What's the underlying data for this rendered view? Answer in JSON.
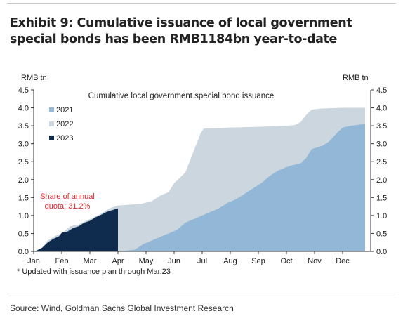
{
  "title": "Exhibit 9: Cumulative issuance of local government special bonds has been RMB1184bn year-to-date",
  "source": "Source: Wind, Goldman Sachs Global Investment Research",
  "chart_data": {
    "type": "area",
    "title": "Cumulative local government special bond issuance",
    "ylabel_left": "RMB tn",
    "ylabel_right": "RMB tn",
    "ylim": [
      0,
      4.5
    ],
    "yticks": [
      "0.0",
      "0.5",
      "1.0",
      "1.5",
      "2.0",
      "2.5",
      "3.0",
      "3.5",
      "4.0",
      "4.5"
    ],
    "xlim": [
      0,
      12
    ],
    "xticks": [
      {
        "label": "Jan",
        "x": 0
      },
      {
        "label": "Feb",
        "x": 1
      },
      {
        "label": "Mar",
        "x": 2
      },
      {
        "label": "Apr",
        "x": 3
      },
      {
        "label": "May",
        "x": 4
      },
      {
        "label": "Jun",
        "x": 5
      },
      {
        "label": "Jul",
        "x": 6
      },
      {
        "label": "Aug",
        "x": 7
      },
      {
        "label": "Sep",
        "x": 8
      },
      {
        "label": "Oct",
        "x": 9
      },
      {
        "label": "Nov",
        "x": 10
      },
      {
        "label": "Dec",
        "x": 11
      }
    ],
    "legend_position": "top-left",
    "annotation": "Share of annual quota: 31.2%",
    "footnote": "* Updated with issuance plan through Mar.23",
    "series": [
      {
        "name": "2022",
        "color": "#cbd6de",
        "points": [
          [
            0,
            0
          ],
          [
            0.3,
            0.1
          ],
          [
            0.5,
            0.3
          ],
          [
            0.8,
            0.45
          ],
          [
            1.0,
            0.5
          ],
          [
            1.3,
            0.7
          ],
          [
            1.6,
            0.75
          ],
          [
            2.0,
            0.9
          ],
          [
            2.4,
            1.05
          ],
          [
            2.7,
            1.2
          ],
          [
            3.0,
            1.28
          ],
          [
            3.4,
            1.3
          ],
          [
            3.8,
            1.32
          ],
          [
            4.2,
            1.4
          ],
          [
            4.5,
            1.55
          ],
          [
            4.8,
            1.65
          ],
          [
            5.0,
            1.9
          ],
          [
            5.2,
            2.05
          ],
          [
            5.4,
            2.2
          ],
          [
            5.6,
            2.6
          ],
          [
            5.8,
            3.0
          ],
          [
            5.95,
            3.3
          ],
          [
            6.05,
            3.42
          ],
          [
            6.5,
            3.43
          ],
          [
            7.0,
            3.45
          ],
          [
            8.0,
            3.47
          ],
          [
            9.0,
            3.5
          ],
          [
            9.3,
            3.52
          ],
          [
            9.5,
            3.6
          ],
          [
            9.7,
            3.8
          ],
          [
            9.9,
            3.95
          ],
          [
            10.2,
            3.98
          ],
          [
            11.0,
            4.0
          ],
          [
            11.8,
            4.0
          ]
        ]
      },
      {
        "name": "2021",
        "color": "#93b7d6",
        "points": [
          [
            0,
            0
          ],
          [
            3.0,
            0
          ],
          [
            3.3,
            0.02
          ],
          [
            3.6,
            0.05
          ],
          [
            3.9,
            0.2
          ],
          [
            4.2,
            0.3
          ],
          [
            4.5,
            0.4
          ],
          [
            4.8,
            0.5
          ],
          [
            5.1,
            0.6
          ],
          [
            5.4,
            0.8
          ],
          [
            5.7,
            0.9
          ],
          [
            6.0,
            1.0
          ],
          [
            6.3,
            1.1
          ],
          [
            6.6,
            1.2
          ],
          [
            6.9,
            1.35
          ],
          [
            7.2,
            1.45
          ],
          [
            7.5,
            1.6
          ],
          [
            7.8,
            1.75
          ],
          [
            8.1,
            1.9
          ],
          [
            8.4,
            2.1
          ],
          [
            8.7,
            2.25
          ],
          [
            9.0,
            2.35
          ],
          [
            9.2,
            2.4
          ],
          [
            9.5,
            2.45
          ],
          [
            9.7,
            2.6
          ],
          [
            9.9,
            2.85
          ],
          [
            10.1,
            2.9
          ],
          [
            10.3,
            2.95
          ],
          [
            10.5,
            3.05
          ],
          [
            10.8,
            3.3
          ],
          [
            11.0,
            3.45
          ],
          [
            11.3,
            3.5
          ],
          [
            11.8,
            3.55
          ]
        ]
      },
      {
        "name": "2023",
        "color": "#0f2c4f",
        "points": [
          [
            0,
            0
          ],
          [
            0.1,
            0.02
          ],
          [
            0.3,
            0.1
          ],
          [
            0.5,
            0.25
          ],
          [
            0.7,
            0.35
          ],
          [
            0.9,
            0.42
          ],
          [
            1.0,
            0.52
          ],
          [
            1.2,
            0.55
          ],
          [
            1.4,
            0.65
          ],
          [
            1.6,
            0.7
          ],
          [
            1.8,
            0.8
          ],
          [
            2.0,
            0.85
          ],
          [
            2.2,
            0.95
          ],
          [
            2.4,
            1.02
          ],
          [
            2.6,
            1.1
          ],
          [
            2.8,
            1.15
          ],
          [
            3.0,
            1.2
          ],
          [
            3.0,
            0
          ]
        ]
      }
    ]
  }
}
